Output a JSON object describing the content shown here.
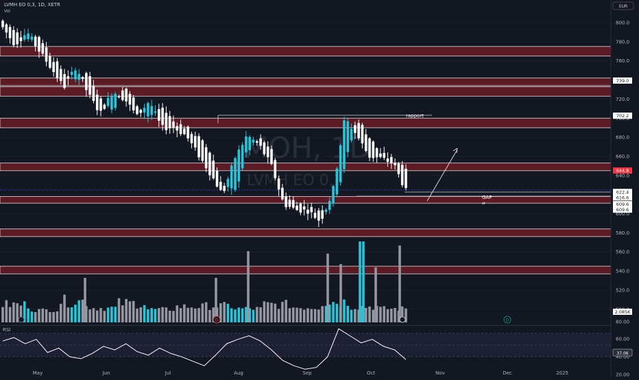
{
  "header": {
    "symbol": "LVMH EO 0,3, 1D, XETR",
    "vol_label": "Vol",
    "currency": "EUR",
    "watermark_line1": "MOH, 1D",
    "watermark_line2": "LVMH EO 0,3"
  },
  "rsi": {
    "label": "RSI",
    "ticks": [
      "80.00",
      "60.00",
      "40.00",
      "20.00"
    ],
    "value_label": "37.06"
  },
  "annotations": {
    "rapport": "rapport",
    "gap": "GAP",
    "gap_sub": "st"
  },
  "markers": {
    "left": "D",
    "right": "D"
  },
  "colors": {
    "up": "#26c6da",
    "down": "#ffffff",
    "zone_fill": "#5c1a25",
    "zone_border": "#e0e0e0",
    "vol_up": "#26c6da",
    "vol_down": "#9598a1"
  },
  "chart_data": {
    "type": "candlestick",
    "timeframe": "1D",
    "x_tick_labels": [
      "May",
      "Jun",
      "Jul",
      "Aug",
      "Sep",
      "Oct",
      "Nov",
      "Dec",
      "2025"
    ],
    "y_tick_labels": [
      "800.0",
      "780.0",
      "760.0",
      "740.0",
      "720.0",
      "700.0",
      "680.0",
      "660.0",
      "640.0",
      "620.0",
      "600.0",
      "580.0",
      "560.0",
      "540.0",
      "520.0",
      "500.0"
    ],
    "price_labels": [
      "739.0",
      "702.2",
      "644.8",
      "622.4",
      "616.6",
      "609.6",
      "609.6"
    ],
    "volume_label": "2.085K",
    "resistance_zones": [
      [
        765,
        775
      ],
      [
        734,
        742
      ],
      [
        723,
        733
      ],
      [
        690,
        700
      ],
      [
        645,
        653
      ],
      [
        611,
        618
      ],
      [
        576,
        584
      ],
      [
        537,
        545
      ]
    ],
    "segments": [
      [
        802,
        795,
        815,
        775
      ],
      [
        790,
        777,
        805,
        765
      ],
      [
        783,
        790,
        800,
        770
      ],
      [
        786,
        770,
        795,
        760
      ],
      [
        764,
        752,
        775,
        740
      ],
      [
        748,
        732,
        760,
        725
      ],
      [
        740,
        754,
        765,
        735
      ],
      [
        748,
        725,
        755,
        715
      ],
      [
        720,
        705,
        730,
        700
      ],
      [
        708,
        728,
        735,
        700
      ],
      [
        733,
        720,
        740,
        710
      ],
      [
        715,
        702,
        725,
        695
      ],
      [
        700,
        718,
        730,
        693
      ],
      [
        712,
        690,
        720,
        683
      ],
      [
        696,
        690,
        700,
        684
      ],
      [
        690,
        682,
        700,
        670
      ],
      [
        680,
        662,
        685,
        650
      ],
      [
        664,
        642,
        668,
        628
      ],
      [
        630,
        620,
        635,
        610
      ],
      [
        622,
        658,
        670,
        615
      ],
      [
        665,
        682,
        690,
        660
      ],
      [
        678,
        672,
        688,
        662
      ],
      [
        668,
        650,
        675,
        645
      ],
      [
        620,
        610,
        628,
        602
      ],
      [
        612,
        604,
        616,
        598
      ],
      [
        606,
        603,
        610,
        596
      ],
      [
        602,
        592,
        605,
        585
      ],
      [
        608,
        622,
        628,
        604
      ],
      [
        650,
        700,
        705,
        648
      ],
      [
        700,
        682,
        708,
        672
      ],
      [
        680,
        660,
        692,
        655
      ],
      [
        662,
        658,
        668,
        652
      ],
      [
        656,
        652,
        660,
        646
      ],
      [
        650,
        624,
        652,
        622
      ]
    ],
    "volume_profile": [
      0.7,
      0.3,
      0.95,
      0.45,
      0.8,
      0.35,
      0.55,
      0.6,
      0.4,
      0.7,
      0.5,
      0.9,
      0.55,
      0.4
    ],
    "volume_spikes": [
      [
        525,
        1.0
      ],
      [
        530,
        1.0
      ],
      [
        583,
        0.95
      ],
      [
        478,
        0.85
      ],
      [
        497,
        0.72
      ],
      [
        362,
        0.88
      ],
      [
        315,
        0.55
      ],
      [
        124,
        0.55
      ],
      [
        548,
        0.68
      ]
    ],
    "rsi_series": [
      58,
      62,
      55,
      60,
      45,
      50,
      40,
      38,
      44,
      52,
      48,
      55,
      46,
      42,
      50,
      44,
      40,
      35,
      30,
      42,
      55,
      60,
      64,
      58,
      48,
      36,
      30,
      26,
      28,
      40,
      72,
      64,
      56,
      60,
      52,
      48,
      37
    ]
  }
}
